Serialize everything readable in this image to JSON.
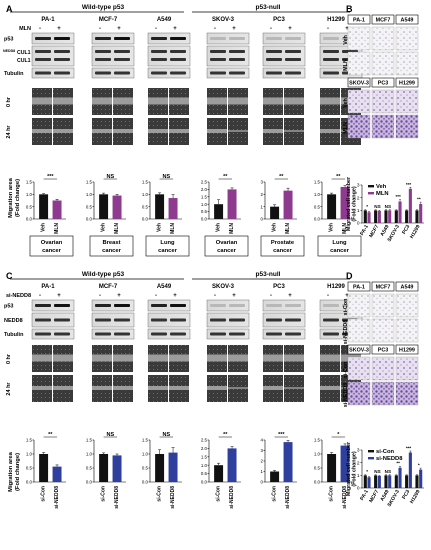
{
  "panels": {
    "A": {
      "letter": "A",
      "group_wt": "Wild-type p53",
      "group_null": "p53-null",
      "cells": [
        "PA-1",
        "MCF-7",
        "A549",
        "SKOV-3",
        "PC3",
        "H1299"
      ],
      "treatment_label": "MLN",
      "signs": [
        "-",
        "+"
      ],
      "blots": [
        "p53",
        "NEDD8-CUL1",
        "CUL1",
        "Tubulin"
      ],
      "blot_label_p53": "p53",
      "blot_label_nedd8_sup": "NEDD8",
      "blot_label_cul1a": "CUL1",
      "blot_label_cul1b": "CUL1",
      "blot_label_tub": "Tubulin",
      "time_0": "0 hr",
      "time_24": "24 hr",
      "ylabel_1": "Migration area",
      "ylabel_2": "(Fold change)",
      "cancers": [
        "Ovarian\ncancer",
        "Breast\ncancer",
        "Lung\ncancer",
        "Ovarian\ncancer",
        "Prostate\ncancer",
        "Lung\ncancer"
      ]
    },
    "B": {
      "letter": "B",
      "row_veh": "Veh",
      "row_mln": "MLN",
      "cells_top": [
        "PA-1",
        "MCF7",
        "A549"
      ],
      "cells_bottom": [
        "SKOV-3",
        "PC3",
        "H1299"
      ]
    },
    "C": {
      "letter": "C",
      "group_wt": "Wild-type p53",
      "group_null": "p53-null",
      "cells": [
        "PA-1",
        "MCF-7",
        "A549",
        "SKOV-3",
        "PC3",
        "H1299"
      ],
      "treatment_label": "si-NEDD8",
      "signs": [
        "-",
        "+"
      ],
      "blot_label_p53": "p53",
      "blot_label_nedd8": "NEDD8",
      "blot_label_tub": "Tubulin",
      "time_0": "0 hr",
      "time_24": "24 hr",
      "ylabel_1": "Migration area",
      "ylabel_2": "(Fold change)"
    },
    "D": {
      "letter": "D",
      "row_sicon": "si-Con",
      "row_sinedd8": "si-NEDD8",
      "cells_top": [
        "PA-1",
        "MCF7",
        "A549"
      ],
      "cells_bottom": [
        "SKOV-3",
        "PC3",
        "H1299"
      ]
    }
  },
  "chart_data": [
    {
      "id": "A-migration",
      "type": "bar",
      "groups": [
        {
          "cell": "PA-1",
          "categories": [
            "Veh",
            "MLN"
          ],
          "values": [
            1.0,
            0.75
          ],
          "errors": [
            0.03,
            0.05
          ],
          "sig": "***"
        },
        {
          "cell": "MCF-7",
          "categories": [
            "Veh",
            "MLN"
          ],
          "values": [
            1.0,
            0.95
          ],
          "errors": [
            0.05,
            0.05
          ],
          "sig": "NS"
        },
        {
          "cell": "A549",
          "categories": [
            "Veh",
            "MLN"
          ],
          "values": [
            1.0,
            0.85
          ],
          "errors": [
            0.06,
            0.14
          ],
          "sig": "NS"
        },
        {
          "cell": "SKOV-3",
          "categories": [
            "Veh",
            "MLN"
          ],
          "values": [
            1.0,
            2.0
          ],
          "errors": [
            0.3,
            0.1
          ],
          "sig": "**"
        },
        {
          "cell": "PC3",
          "categories": [
            "Veh",
            "MLN"
          ],
          "values": [
            1.0,
            2.3
          ],
          "errors": [
            0.15,
            0.2
          ],
          "sig": "**"
        },
        {
          "cell": "H1299",
          "categories": [
            "Veh",
            "MLN"
          ],
          "values": [
            1.0,
            1.3
          ],
          "errors": [
            0.05,
            0.05
          ],
          "sig": "**"
        }
      ],
      "ylims": [
        [
          0,
          1.5
        ],
        [
          0,
          1.5
        ],
        [
          0,
          1.5
        ],
        [
          0,
          2.5
        ],
        [
          0,
          3.0
        ],
        [
          0,
          1.5
        ]
      ],
      "yticks": [
        [
          0,
          0.5,
          1.0,
          1.5
        ],
        [
          0,
          0.5,
          1.0,
          1.5
        ],
        [
          0,
          0.5,
          1.0,
          1.5
        ],
        [
          0,
          0.5,
          1.0,
          1.5,
          2.0,
          2.5
        ],
        [
          0,
          1,
          2,
          3
        ],
        [
          0,
          0.5,
          1.0,
          1.5
        ]
      ],
      "colors": [
        "#111111",
        "#8e3a8e"
      ]
    },
    {
      "id": "B-invasion",
      "type": "bar",
      "ylabel": "Migrated cell number",
      "ylabel2": "(Fold change)",
      "categories": [
        "PA-1",
        "MCF7",
        "A549",
        "SKOV-3",
        "PC3",
        "H1299"
      ],
      "series": [
        {
          "name": "Veh",
          "values": [
            1.0,
            1.0,
            1.0,
            1.0,
            1.0,
            1.0
          ],
          "errors": [
            0.05,
            0.05,
            0.05,
            0.05,
            0.05,
            0.05
          ]
        },
        {
          "name": "MLN",
          "values": [
            0.85,
            0.95,
            1.0,
            1.7,
            2.7,
            1.5
          ],
          "errors": [
            0.06,
            0.05,
            0.06,
            0.15,
            0.12,
            0.15
          ]
        }
      ],
      "sig": [
        "*",
        "NS",
        "NS",
        "***",
        "***",
        "**"
      ],
      "ylim": [
        0,
        3
      ],
      "yticks": [
        0,
        1,
        2,
        3
      ],
      "colors": [
        "#111111",
        "#8e3a8e"
      ]
    },
    {
      "id": "C-migration",
      "type": "bar",
      "groups": [
        {
          "cell": "PA-1",
          "categories": [
            "si-Con",
            "si-NEDD8"
          ],
          "values": [
            1.0,
            0.55
          ],
          "errors": [
            0.05,
            0.06
          ],
          "sig": "**"
        },
        {
          "cell": "MCF-7",
          "categories": [
            "si-Con",
            "si-NEDD8"
          ],
          "values": [
            1.0,
            0.95
          ],
          "errors": [
            0.04,
            0.05
          ],
          "sig": "NS"
        },
        {
          "cell": "A549",
          "categories": [
            "si-Con",
            "si-NEDD8"
          ],
          "values": [
            1.0,
            1.05
          ],
          "errors": [
            0.15,
            0.18
          ],
          "sig": "NS"
        },
        {
          "cell": "SKOV-3",
          "categories": [
            "si-Con",
            "si-NEDD8"
          ],
          "values": [
            1.0,
            2.0
          ],
          "errors": [
            0.12,
            0.1
          ],
          "sig": "**"
        },
        {
          "cell": "PC3",
          "categories": [
            "si-Con",
            "si-NEDD8"
          ],
          "values": [
            1.0,
            3.8
          ],
          "errors": [
            0.1,
            0.15
          ],
          "sig": "***"
        },
        {
          "cell": "H1299",
          "categories": [
            "si-Con",
            "si-NEDD8"
          ],
          "values": [
            1.0,
            1.3
          ],
          "errors": [
            0.05,
            0.06
          ],
          "sig": "*"
        }
      ],
      "ylims": [
        [
          0,
          1.5
        ],
        [
          0,
          1.5
        ],
        [
          0,
          1.5
        ],
        [
          0,
          2.5
        ],
        [
          0,
          4
        ],
        [
          0,
          1.5
        ]
      ],
      "yticks": [
        [
          0,
          0.5,
          1.0,
          1.5
        ],
        [
          0,
          0.5,
          1.0,
          1.5
        ],
        [
          0,
          0.5,
          1.0,
          1.5
        ],
        [
          0,
          0.5,
          1.0,
          1.5,
          2.0,
          2.5
        ],
        [
          0,
          1,
          2,
          3,
          4
        ],
        [
          0,
          0.5,
          1.0,
          1.5
        ]
      ],
      "colors": [
        "#111111",
        "#2e3f9e"
      ]
    },
    {
      "id": "D-invasion",
      "type": "bar",
      "ylabel": "Migrated cell number",
      "ylabel2": "(Fold change)",
      "categories": [
        "PA-1",
        "MCF7",
        "A549",
        "SKOV-3",
        "PC3",
        "H1299"
      ],
      "series": [
        {
          "name": "si-Con",
          "values": [
            1.0,
            1.0,
            1.0,
            1.0,
            1.0,
            1.0
          ],
          "errors": [
            0.05,
            0.05,
            0.05,
            0.05,
            0.05,
            0.05
          ]
        },
        {
          "name": "si-NEDD8",
          "values": [
            0.85,
            0.95,
            1.0,
            1.6,
            2.8,
            1.45
          ],
          "errors": [
            0.06,
            0.05,
            0.06,
            0.12,
            0.12,
            0.12
          ]
        }
      ],
      "sig": [
        "*",
        "NS",
        "NS",
        "**",
        "***",
        "*"
      ],
      "ylim": [
        0,
        3
      ],
      "yticks": [
        0,
        1,
        2,
        3
      ],
      "colors": [
        "#111111",
        "#2e3f9e"
      ]
    }
  ]
}
